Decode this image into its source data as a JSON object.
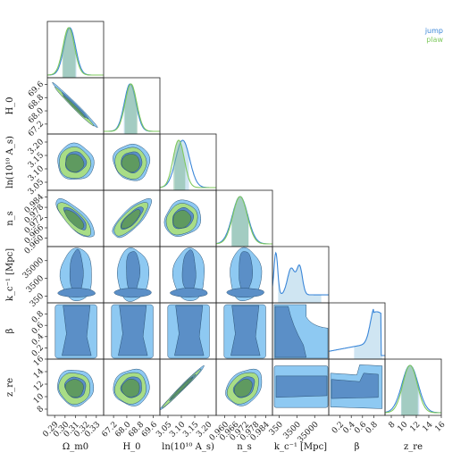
{
  "chart_data": {
    "type": "corner",
    "legend": {
      "placement": "top-right",
      "entries": [
        {
          "name": "jump",
          "color": "#3a86d8"
        },
        {
          "name": "plaw",
          "color": "#7fc95e"
        }
      ]
    },
    "colors": {
      "jump_outer": "#8ec9f2",
      "jump_inner": "#5b8fc7",
      "plaw_outer": "#a8dd86",
      "plaw_inner": "#5f9a60",
      "jump_line": "#3a86d8",
      "plaw_line": "#7fc95e",
      "outline": "#2a5275"
    },
    "parameters": [
      {
        "key": "omega",
        "label": "Ω_m0",
        "ticks": [
          "0.29",
          "0.30",
          "0.31",
          "0.32",
          "0.33"
        ],
        "range": [
          0.283,
          0.337
        ]
      },
      {
        "key": "h0",
        "label": "H_0",
        "ticks": [
          "67.2",
          "68.0",
          "68.8",
          "69.6"
        ],
        "range": [
          66.6,
          70.0
        ]
      },
      {
        "key": "lnas",
        "label": "ln(10¹⁰ A_s)",
        "ticks": [
          "3.05",
          "3.10",
          "3.15",
          "3.20"
        ],
        "range": [
          3.02,
          3.23
        ]
      },
      {
        "key": "ns",
        "label": "n_s",
        "ticks": [
          "0.960",
          "0.966",
          "0.972",
          "0.978",
          "0.984"
        ],
        "range": [
          0.955,
          0.988
        ]
      },
      {
        "key": "kc",
        "label": "k_c⁻¹ [Mpc]",
        "ticks": [
          "350",
          "3500",
          "35000"
        ],
        "range": [
          0,
          3
        ],
        "scale": "log"
      },
      {
        "key": "beta",
        "label": "β",
        "ticks": [
          "0.2",
          "0.4",
          "0.6",
          "0.8"
        ],
        "range": [
          0.0,
          1.0
        ]
      },
      {
        "key": "zre",
        "label": "z_re",
        "ticks": [
          "8",
          "10",
          "12",
          "14",
          "16"
        ],
        "range": [
          7.0,
          16.0
        ]
      }
    ],
    "marginals": [
      {
        "param": "omega",
        "series": [
          {
            "name": "jump",
            "mean": 0.3045,
            "sd": 0.0055,
            "hpd": [
              0.298,
              0.311
            ]
          },
          {
            "name": "plaw",
            "mean": 0.3035,
            "sd": 0.0055,
            "hpd": [
              0.297,
              0.31
            ]
          }
        ]
      },
      {
        "param": "h0",
        "series": [
          {
            "name": "jump",
            "mean": 68.2,
            "sd": 0.35,
            "hpd": [
              67.8,
              68.6
            ]
          },
          {
            "name": "plaw",
            "mean": 68.25,
            "sd": 0.35,
            "hpd": [
              67.85,
              68.65
            ]
          }
        ]
      },
      {
        "param": "lnas",
        "series": [
          {
            "name": "jump",
            "mean": 3.105,
            "sd": 0.026,
            "hpd": [
              3.075,
              3.13
            ]
          },
          {
            "name": "plaw",
            "mean": 3.09,
            "sd": 0.021,
            "hpd": [
              3.07,
              3.115
            ]
          }
        ]
      },
      {
        "param": "ns",
        "series": [
          {
            "name": "jump",
            "mean": 0.969,
            "sd": 0.0045,
            "hpd": [
              0.964,
              0.974
            ]
          },
          {
            "name": "plaw",
            "mean": 0.969,
            "sd": 0.0042,
            "hpd": [
              0.964,
              0.974
            ]
          }
        ]
      },
      {
        "param": "kc",
        "series": [
          {
            "name": "jump",
            "shape": "multi-peak",
            "hpd": [
              0.3,
              2.6
            ]
          }
        ]
      },
      {
        "param": "beta",
        "series": [
          {
            "name": "jump",
            "shape": "rising",
            "hpd": [
              0.45,
              0.95
            ]
          }
        ]
      },
      {
        "param": "zre",
        "series": [
          {
            "name": "jump",
            "mean": 11.0,
            "sd": 1.3,
            "hpd": [
              9.5,
              12.5
            ]
          },
          {
            "name": "plaw",
            "mean": 11.0,
            "sd": 1.15,
            "hpd": [
              9.6,
              12.3
            ]
          }
        ]
      }
    ],
    "joint": [
      {
        "x": "omega",
        "y": "h0",
        "rho": -0.97
      },
      {
        "x": "omega",
        "y": "lnas",
        "rho": 0.0
      },
      {
        "x": "h0",
        "y": "lnas",
        "rho": 0.0
      },
      {
        "x": "omega",
        "y": "ns",
        "rho": -0.55
      },
      {
        "x": "h0",
        "y": "ns",
        "rho": 0.55
      },
      {
        "x": "lnas",
        "y": "ns",
        "rho": 0.1
      },
      {
        "x": "omega",
        "y": "zre",
        "rho": -0.05
      },
      {
        "x": "h0",
        "y": "zre",
        "rho": 0.05
      },
      {
        "x": "lnas",
        "y": "zre",
        "rho": 0.96
      },
      {
        "x": "ns",
        "y": "zre",
        "rho": 0.2
      }
    ]
  }
}
